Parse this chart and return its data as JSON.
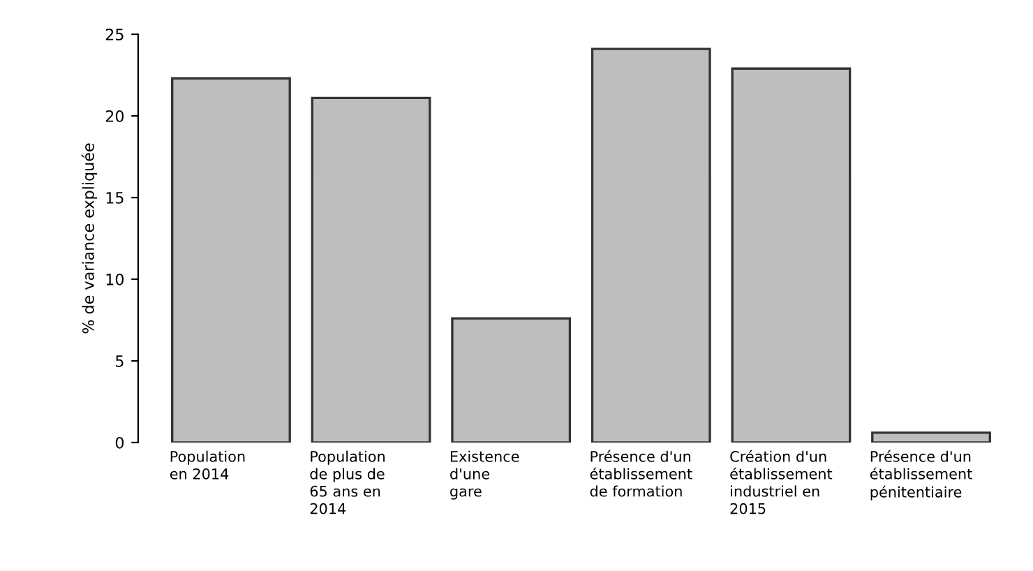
{
  "chart_data": {
    "type": "bar",
    "ylabel": "% de variance expliquée",
    "categories": [
      "Population\nen 2014",
      "Population\nde plus de\n65 ans en\n2014",
      "Existence\nd'une\ngare",
      "Présence d'un\nétablissement\nde formation",
      "Création d'un\nétablissement\nindustriel en\n2015",
      "Présence d'un\nétablissement\npénitentiaire"
    ],
    "values": [
      22.3,
      21.1,
      7.6,
      24.1,
      22.9,
      0.6
    ],
    "color": "#bebebe",
    "ylim": [
      0,
      25
    ],
    "yticks": [
      0,
      5,
      10,
      15,
      20,
      25
    ],
    "grid": false
  }
}
